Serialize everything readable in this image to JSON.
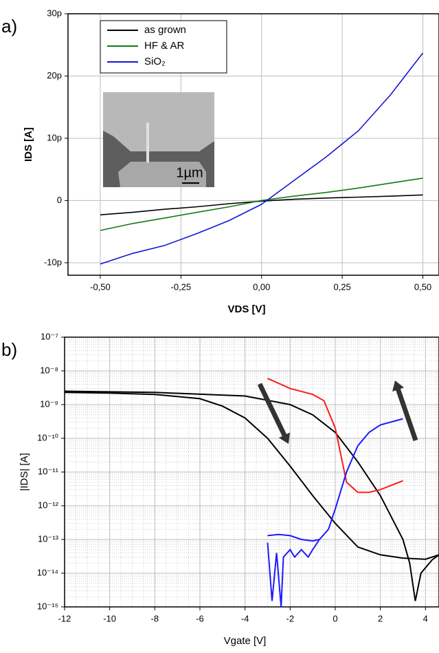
{
  "chart_data": [
    {
      "type": "line",
      "panel_label": "a)",
      "x_label": "VDS [V]",
      "y_label": "IDS [A]",
      "inset_label": "1µm",
      "x": [
        -0.5,
        -0.4,
        -0.3,
        -0.2,
        -0.1,
        0,
        0.1,
        0.2,
        0.3,
        0.4,
        0.5
      ],
      "series": [
        {
          "name": "as grown",
          "color": "#000000",
          "values": [
            -2.3e-12,
            -1.9e-12,
            -1.4e-12,
            -1e-12,
            -5e-13,
            -1e-13,
            2e-13,
            4e-13,
            5.5e-13,
            7e-13,
            9e-13
          ]
        },
        {
          "name": "HF & AR",
          "color": "#137a13",
          "values": [
            -4.8e-12,
            -3.7e-12,
            -2.8e-12,
            -1.9e-12,
            -1e-12,
            0,
            7e-13,
            1.3e-12,
            2e-12,
            2.8e-12,
            3.6e-12
          ]
        },
        {
          "name": "SiO₂",
          "color": "#1414d8",
          "values": [
            -1.02e-11,
            -8.5e-12,
            -7.2e-12,
            -5.3e-12,
            -3.2e-12,
            -6e-13,
            3.2e-12,
            7e-12,
            1.12e-11,
            1.7e-11,
            2.37e-11
          ]
        }
      ],
      "xlim": [
        -0.6,
        0.55
      ],
      "ylim": [
        -1.2e-11,
        3e-11
      ],
      "xticks": [
        {
          "value": -0.5,
          "label": "-0,50"
        },
        {
          "value": -0.25,
          "label": "-0,25"
        },
        {
          "value": 0,
          "label": "0,00"
        },
        {
          "value": 0.25,
          "label": "0,25"
        },
        {
          "value": 0.5,
          "label": "0,50"
        }
      ],
      "yticks": [
        {
          "value": -1e-11,
          "label": "-10p"
        },
        0,
        {
          "value": 1e-11,
          "label": "10p"
        },
        {
          "value": 2e-11,
          "label": "20p"
        },
        {
          "value": 3e-11,
          "label": "30p"
        }
      ],
      "grid": true,
      "legend": "upper left"
    },
    {
      "type": "line",
      "panel_label": "b)",
      "x_label": "Vgate [V]",
      "y_label": "|IDS| [A]",
      "yscale": "log",
      "series": [
        {
          "color": "#000000",
          "x": [
            -12,
            -10,
            -8,
            -6,
            -5,
            -4,
            -3,
            -2,
            -1,
            0,
            1,
            2,
            3,
            4,
            4.6
          ],
          "values": [
            2.3e-09,
            2.2e-09,
            2e-09,
            1.5e-09,
            9e-10,
            4e-10,
            1e-10,
            1.5e-11,
            2e-12,
            3e-13,
            6e-14,
            3.5e-14,
            2.8e-14,
            2.6e-14,
            3.5e-14
          ]
        },
        {
          "color": "#000000",
          "x": [
            -12,
            -8,
            -4,
            -2,
            -1,
            0,
            1,
            2,
            3,
            3.3,
            3.55,
            3.8,
            4.3,
            4.6
          ],
          "values": [
            2.5e-09,
            2.3e-09,
            1.8e-09,
            1e-09,
            5e-10,
            1.5e-10,
            2e-11,
            2e-12,
            1e-13,
            2e-14,
            1.5e-15,
            1e-14,
            2.5e-14,
            3.5e-14
          ]
        },
        {
          "color": "#ff1a1a",
          "x": [
            -3,
            -2,
            -1,
            -0.5,
            0,
            0.5,
            1,
            1.5,
            2,
            3
          ],
          "values": [
            6e-09,
            3e-09,
            2e-09,
            1.3e-09,
            2e-10,
            5e-12,
            2.5e-12,
            2.5e-12,
            3e-12,
            5.5e-12
          ]
        },
        {
          "color": "#1a1aff",
          "x": [
            -3,
            -2.5,
            -2,
            -1.5,
            -1,
            -0.7,
            -0.3,
            0,
            0.5,
            1,
            1.5,
            2,
            3
          ],
          "values": [
            1.3e-13,
            1.4e-13,
            1.3e-13,
            1e-13,
            9e-14,
            1e-13,
            2e-13,
            8e-13,
            1e-11,
            6e-11,
            1.5e-10,
            2.5e-10,
            3.8e-10
          ]
        },
        {
          "color": "#1a1aff",
          "x": [
            -3,
            -2.8,
            -2.6,
            -2.4,
            -2.3,
            -2,
            -1.8,
            -1.5,
            -1.2,
            -1,
            -0.7
          ],
          "values": [
            8e-14,
            1.5e-15,
            4e-14,
            1e-15,
            3e-14,
            5e-14,
            3e-14,
            5e-14,
            3e-14,
            5e-14,
            1e-13
          ]
        }
      ],
      "xlim": [
        -12,
        4.6
      ],
      "ylim": [
        1e-15,
        1e-07
      ],
      "xticks": [
        -12,
        -10,
        -8,
        -6,
        -4,
        -2,
        0,
        2,
        4
      ],
      "yticks": [
        {
          "value": 1e-15,
          "label": "10⁻¹⁵"
        },
        {
          "value": 1e-14,
          "label": "10⁻¹⁴"
        },
        {
          "value": 1e-13,
          "label": "10⁻¹³"
        },
        {
          "value": 1e-12,
          "label": "10⁻¹²"
        },
        {
          "value": 1e-11,
          "label": "10⁻¹¹"
        },
        {
          "value": 1e-10,
          "label": "10⁻¹⁰"
        },
        {
          "value": 1e-09,
          "label": "10⁻⁹"
        },
        {
          "value": 1e-08,
          "label": "10⁻⁸"
        },
        {
          "value": 1e-07,
          "label": "10⁻⁷"
        }
      ],
      "grid": true,
      "minor_grid": true
    }
  ]
}
